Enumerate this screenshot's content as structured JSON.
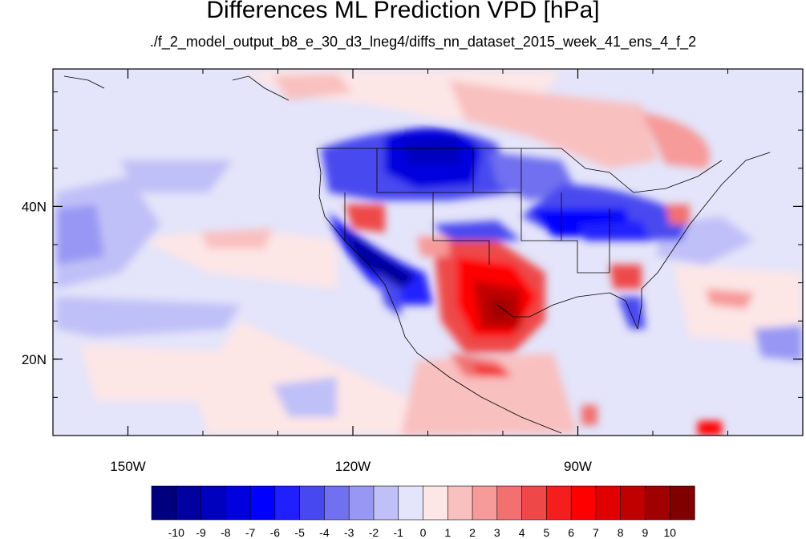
{
  "title": "Differences ML Prediction VPD [hPa]",
  "subtitle": "./f_2_model_output_b8_e_30_d3_lneg4/diffs_nn_dataset_2015_week_41_ens_4_f_2",
  "map": {
    "lon_range": [
      -160,
      -60
    ],
    "lat_range": [
      10,
      58
    ],
    "lon_ticks": [
      {
        "value": -150,
        "label": "150W"
      },
      {
        "value": -120,
        "label": "120W"
      },
      {
        "value": -90,
        "label": "90W"
      }
    ],
    "lat_ticks": [
      {
        "value": 40,
        "label": "40N"
      },
      {
        "value": 20,
        "label": "20N"
      }
    ]
  },
  "colorbar": {
    "labels": [
      "-10",
      "-9",
      "-8",
      "-7",
      "-6",
      "-5",
      "-4",
      "-3",
      "-2",
      "-1",
      "0",
      "1",
      "2",
      "3",
      "4",
      "5",
      "6",
      "7",
      "8",
      "9",
      "10"
    ],
    "colors": [
      "#00007f",
      "#00009f",
      "#0000bf",
      "#0000df",
      "#0000ff",
      "#2020ff",
      "#4848f0",
      "#7070f0",
      "#9898f4",
      "#c0c0f8",
      "#e4e4fa",
      "#fde6e6",
      "#f9c0c0",
      "#f79a9a",
      "#f27070",
      "#ee4848",
      "#f41e1e",
      "#ff0000",
      "#e00000",
      "#c00000",
      "#a00000",
      "#800000"
    ]
  }
}
